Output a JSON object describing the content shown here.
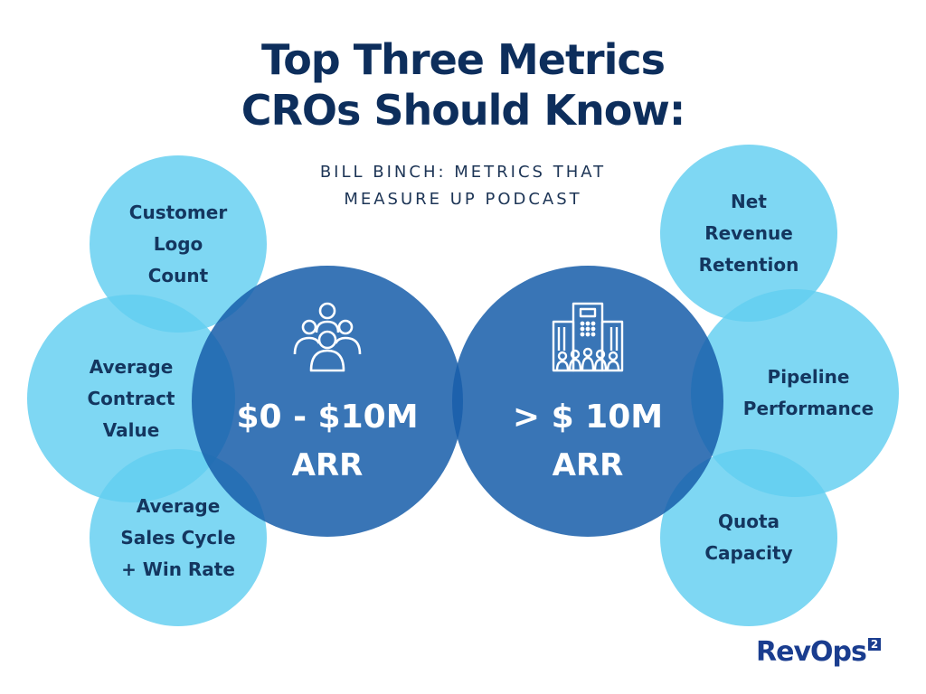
{
  "title": {
    "line1": "Top Three Metrics",
    "line2": "CROs Should Know:"
  },
  "subtitle": {
    "line1": "BILL BINCH: METRICS THAT",
    "line2": "MEASURE UP PODCAST"
  },
  "left_metrics": [
    {
      "lines": [
        "Customer",
        "Logo",
        "Count"
      ]
    },
    {
      "lines": [
        "Average",
        "Contract",
        "Value"
      ]
    },
    {
      "lines": [
        "Average",
        "Sales Cycle",
        "+ Win Rate"
      ]
    }
  ],
  "right_metrics": [
    {
      "lines": [
        "Net",
        "Revenue",
        "Retention"
      ]
    },
    {
      "lines": [
        "Pipeline",
        "Performance"
      ]
    },
    {
      "lines": [
        "Quota",
        "Capacity"
      ]
    }
  ],
  "segments": {
    "left": {
      "amount": "$0 - $10M",
      "unit": "ARR",
      "icon": "people-group-icon"
    },
    "right": {
      "amount": "> $ 10M",
      "unit": "ARR",
      "icon": "office-building-icon"
    }
  },
  "logo": {
    "text": "RevOps",
    "superscript": "2"
  },
  "colors": {
    "title": "#0d2e5c",
    "small_circle": "#62cef0",
    "big_circle": "#195eaa",
    "logo": "#1a3d8f"
  }
}
